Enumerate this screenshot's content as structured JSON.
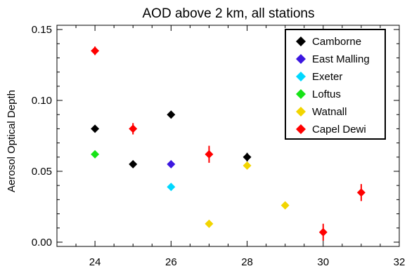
{
  "chart_data": {
    "type": "scatter",
    "title": "AOD above 2 km, all stations",
    "xlabel": "",
    "ylabel": "Aerosol Optical Depth",
    "xlim": [
      23,
      32
    ],
    "ylim": [
      -0.003,
      0.153
    ],
    "xticks": [
      24,
      26,
      28,
      30,
      32
    ],
    "xtick_labels": [
      "24",
      "26",
      "28",
      "30",
      "32"
    ],
    "yticks": [
      0.0,
      0.05,
      0.1,
      0.15
    ],
    "ytick_labels": [
      "0.00",
      "0.05",
      "0.10",
      "0.15"
    ],
    "grid": false,
    "legend_position": "top-right",
    "marker": "diamond",
    "series": [
      {
        "name": "Camborne",
        "color": "#000000",
        "points": [
          {
            "x": 24,
            "y": 0.08
          },
          {
            "x": 25,
            "y": 0.055
          },
          {
            "x": 26,
            "y": 0.09
          },
          {
            "x": 28,
            "y": 0.06,
            "yerr": 0.003
          }
        ]
      },
      {
        "name": "East Malling",
        "color": "#3c17e0",
        "points": [
          {
            "x": 26,
            "y": 0.055
          }
        ]
      },
      {
        "name": "Exeter",
        "color": "#00d8ff",
        "points": [
          {
            "x": 26,
            "y": 0.039
          }
        ]
      },
      {
        "name": "Loftus",
        "color": "#17e317",
        "points": [
          {
            "x": 24,
            "y": 0.062
          }
        ]
      },
      {
        "name": "Watnall",
        "color": "#f2d500",
        "points": [
          {
            "x": 27,
            "y": 0.013
          },
          {
            "x": 28,
            "y": 0.054
          },
          {
            "x": 29,
            "y": 0.026
          }
        ]
      },
      {
        "name": "Capel Dewi",
        "color": "#ff0000",
        "points": [
          {
            "x": 24,
            "y": 0.135,
            "yerr": 0.003
          },
          {
            "x": 25,
            "y": 0.08,
            "yerr": 0.004
          },
          {
            "x": 27,
            "y": 0.062,
            "yerr": 0.006
          },
          {
            "x": 30,
            "y": 0.007,
            "yerr": 0.006
          },
          {
            "x": 31,
            "y": 0.035,
            "yerr": 0.006
          }
        ]
      }
    ]
  }
}
